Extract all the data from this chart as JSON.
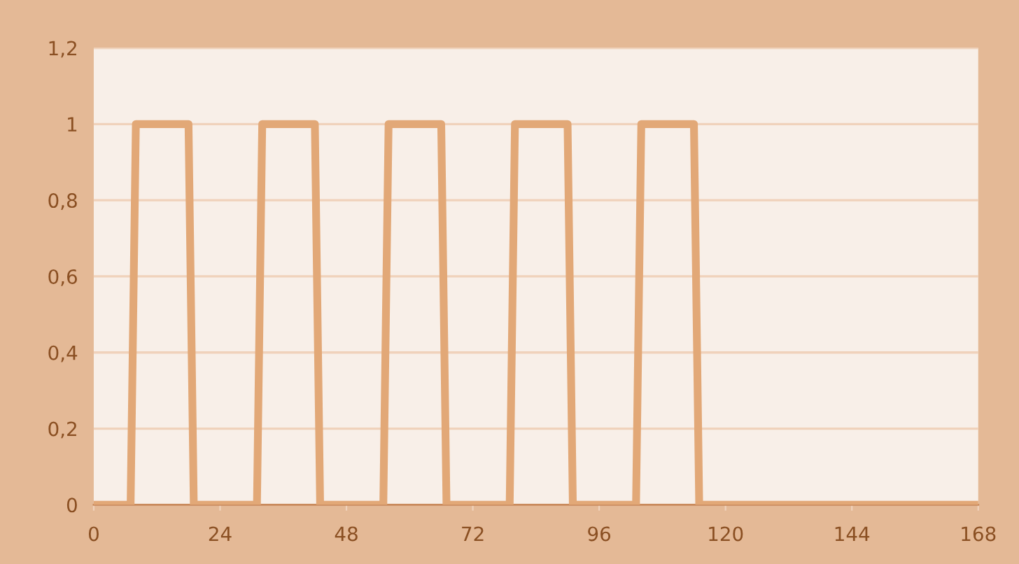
{
  "chart_data": {
    "type": "line",
    "x": [
      0,
      7,
      8,
      18,
      19,
      31,
      32,
      42,
      43,
      55,
      56,
      66,
      67,
      79,
      80,
      90,
      91,
      103,
      104,
      114,
      115,
      168
    ],
    "series": [
      {
        "color": "#e2a877",
        "values": [
          0,
          0,
          1,
          1,
          0,
          0,
          1,
          1,
          0,
          0,
          1,
          1,
          0,
          0,
          1,
          1,
          0,
          0,
          1,
          1,
          0,
          0
        ]
      }
    ],
    "xlim": [
      0,
      168
    ],
    "xticks": [
      0,
      24,
      48,
      72,
      96,
      120,
      144,
      168
    ],
    "ylim": [
      0,
      1.2
    ],
    "yticks": [
      0,
      {
        "value": 0.2,
        "label": "0,2"
      },
      {
        "value": 0.4,
        "label": "0,4"
      },
      {
        "value": 0.6,
        "label": "0,6"
      },
      {
        "value": 0.8,
        "label": "0,8"
      },
      1,
      {
        "value": 1.2,
        "label": "1,2"
      }
    ],
    "grid": "y",
    "marker": "none",
    "line_style": "solid"
  }
}
